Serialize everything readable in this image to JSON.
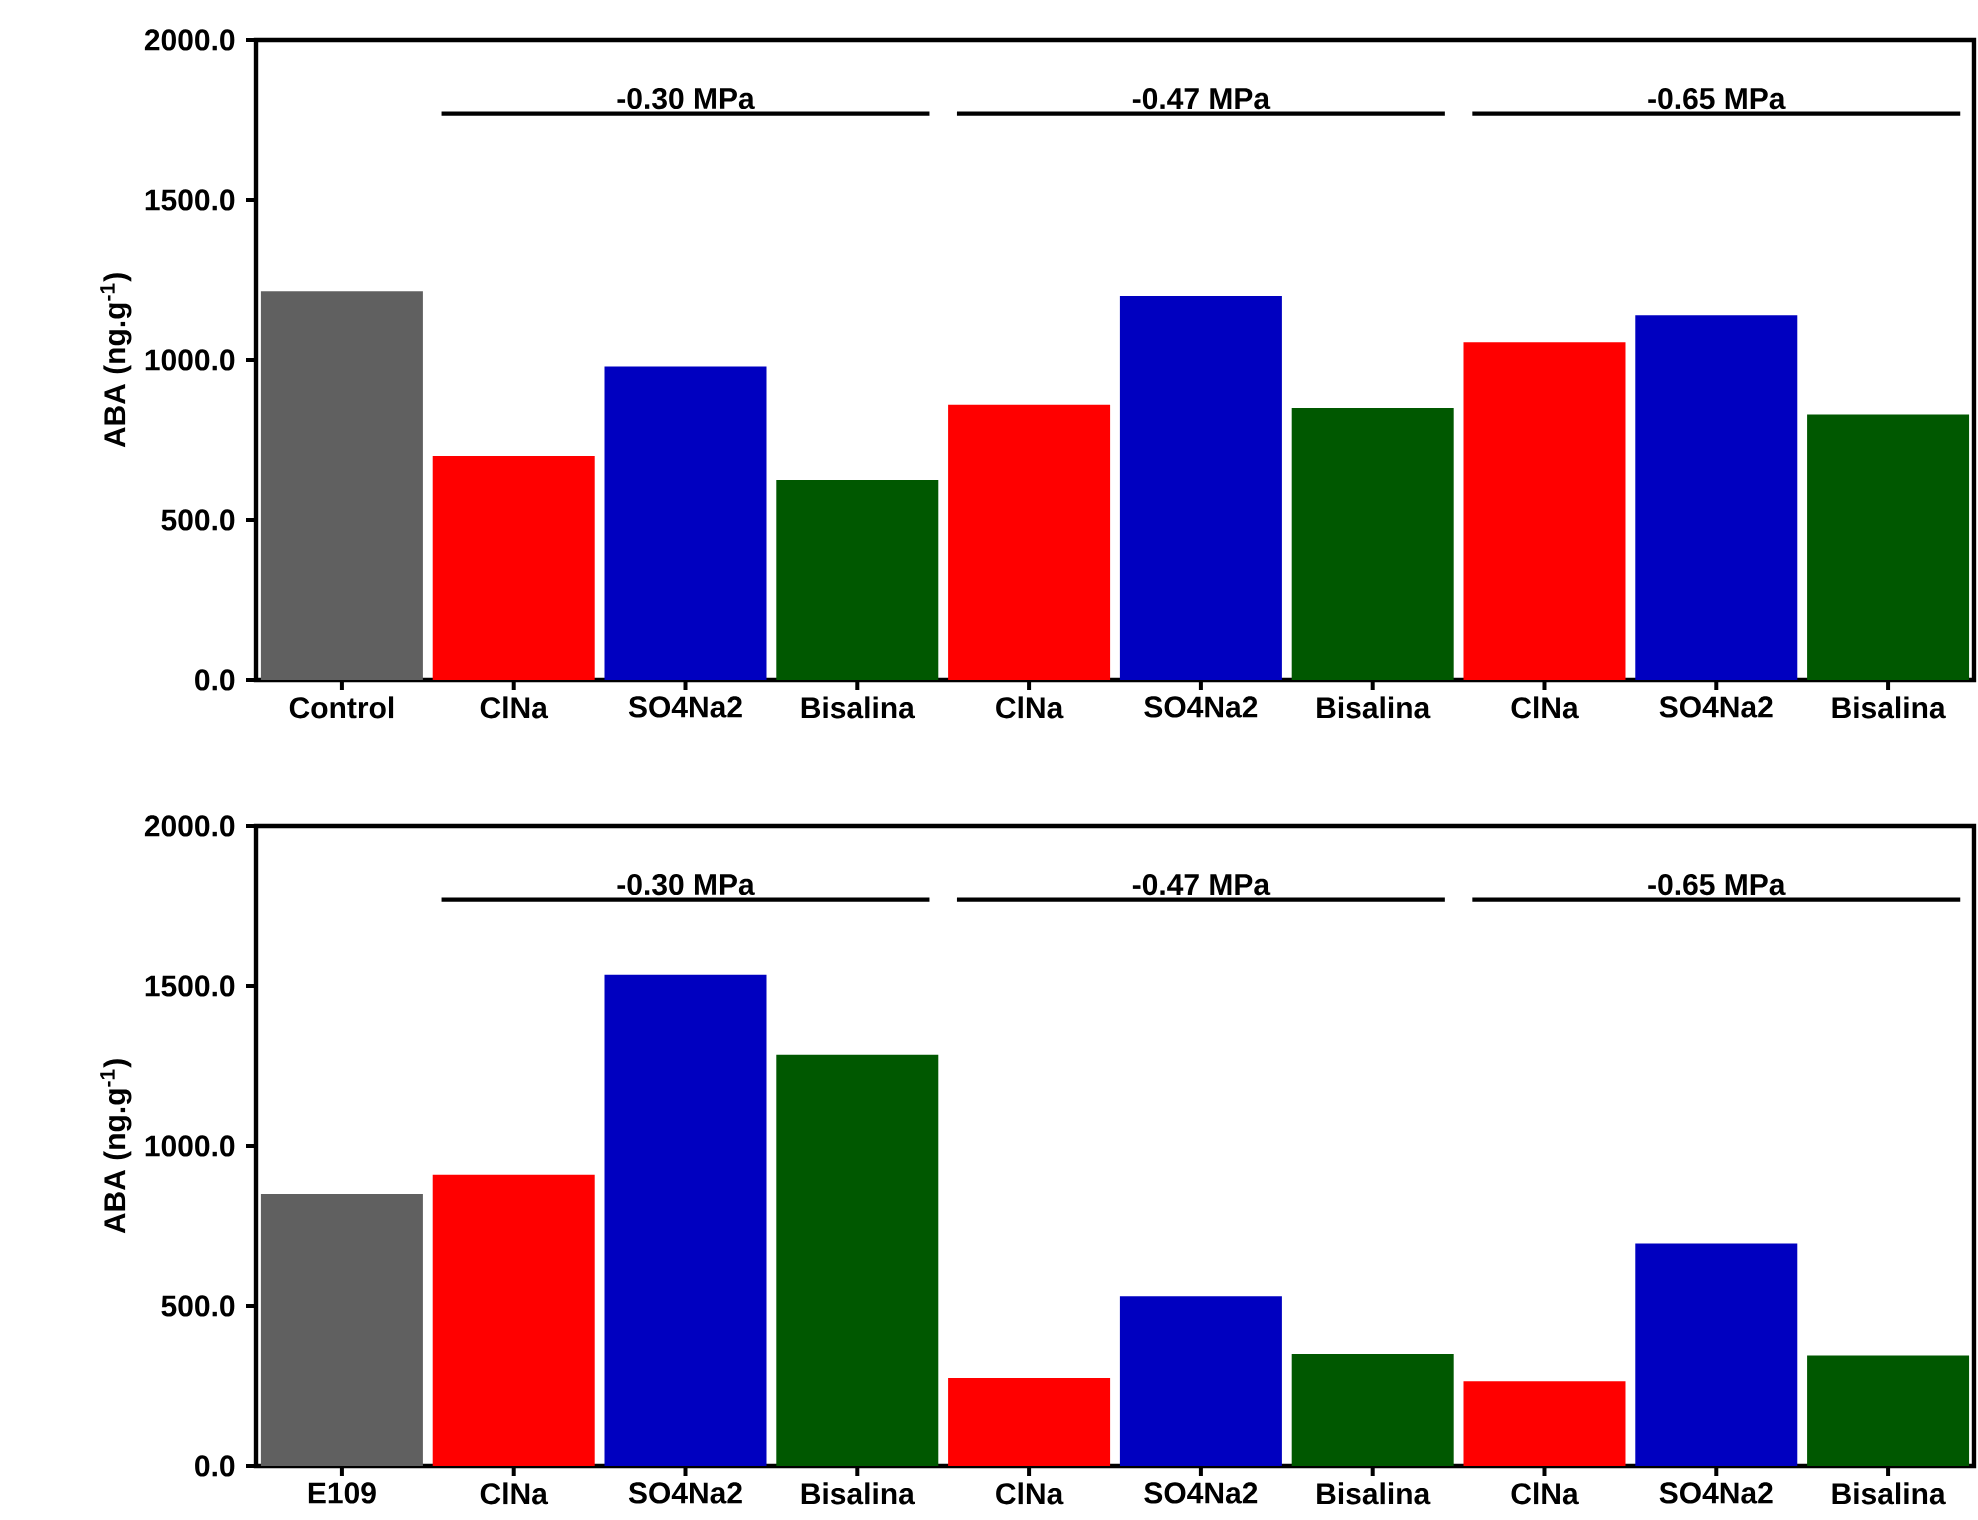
{
  "chart_data": [
    {
      "type": "bar",
      "ylabel": "ABA (ng.g$^{-1}$)",
      "categories": [
        "Control",
        "ClNa",
        "SO4Na2",
        "Bisalina",
        "ClNa",
        "SO4Na2",
        "Bisalina",
        "ClNa",
        "SO4Na2",
        "Bisalina"
      ],
      "values": [
        1215,
        700,
        980,
        625,
        860,
        1200,
        850,
        1055,
        1140,
        830
      ],
      "colors": [
        "#606060",
        "#ff0000",
        "#0000c0",
        "#005800",
        "#ff0000",
        "#0000c0",
        "#005800",
        "#ff0000",
        "#0000c0",
        "#005800"
      ],
      "ylim": [
        0,
        2000
      ],
      "yticks": [
        {
          "value": 0,
          "label": "0.0"
        },
        {
          "value": 500,
          "label": "500.0"
        },
        {
          "value": 1000,
          "label": "1000.0"
        },
        {
          "value": 1500,
          "label": "1500.0"
        },
        {
          "value": 2000,
          "label": "2000.0"
        }
      ],
      "annotations": [
        "-0.30 MPa",
        "-0.47 MPa",
        "-0.65 MPa"
      ]
    },
    {
      "type": "bar",
      "ylabel": "ABA (ng.g$^{-1}$)",
      "categories": [
        "E109",
        "ClNa",
        "SO4Na2",
        "Bisalina",
        "ClNa",
        "SO4Na2",
        "Bisalina",
        "ClNa",
        "SO4Na2",
        "Bisalina"
      ],
      "values": [
        850,
        910,
        1535,
        1285,
        275,
        530,
        350,
        265,
        695,
        345
      ],
      "colors": [
        "#606060",
        "#ff0000",
        "#0000c0",
        "#005800",
        "#ff0000",
        "#0000c0",
        "#005800",
        "#ff0000",
        "#0000c0",
        "#005800"
      ],
      "ylim": [
        0,
        2000
      ],
      "yticks": [
        {
          "value": 0,
          "label": "0.0"
        },
        {
          "value": 500,
          "label": "500.0"
        },
        {
          "value": 1000,
          "label": "1000.0"
        },
        {
          "value": 1500,
          "label": "1500.0"
        },
        {
          "value": 2000,
          "label": "2000.0"
        }
      ],
      "annotations": [
        "-0.30 MPa",
        "-0.47 MPa",
        "-0.65 MPa"
      ]
    }
  ]
}
